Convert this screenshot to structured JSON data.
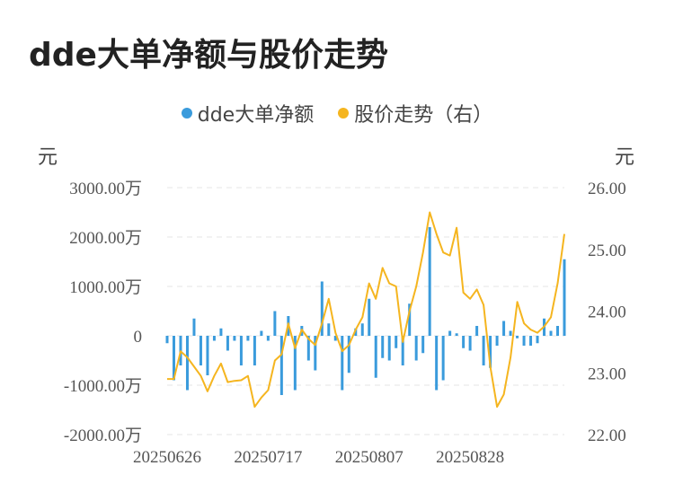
{
  "title": "dde大单净额与股价走势",
  "legend": [
    {
      "name": "dde大单净额",
      "color": "#3a9bdc"
    },
    {
      "name": "股价走势（右）",
      "color": "#f5b51f"
    }
  ],
  "chart_data": {
    "type": "bar+line",
    "title": "dde大单净额与股价走势",
    "left_unit": "元",
    "right_unit": "元",
    "y_left": {
      "min": -2000,
      "max": 3000,
      "ticks": [
        3000,
        2000,
        1000,
        0,
        -1000,
        -2000
      ],
      "tick_labels": [
        "3000.00万",
        "2000.00万",
        "1000.00万",
        "0",
        "-1000.00万",
        "-2000.00万"
      ]
    },
    "y_right": {
      "min": 22.0,
      "max": 26.0,
      "ticks": [
        26.0,
        25.0,
        24.0,
        23.0,
        22.0
      ],
      "tick_labels": [
        "26.00",
        "25.00",
        "24.00",
        "23.00",
        "22.00"
      ]
    },
    "x_tick_labels": [
      {
        "index": 0,
        "label": "20250626"
      },
      {
        "index": 15,
        "label": "20250717"
      },
      {
        "index": 30,
        "label": "20250807"
      },
      {
        "index": 45,
        "label": "20250828"
      }
    ],
    "grid": true,
    "legend_position": "top-center",
    "series": [
      {
        "name": "dde大单净额",
        "type": "bar",
        "color": "#3a9bdc",
        "values": [
          -150,
          -900,
          -600,
          -1100,
          350,
          -600,
          -800,
          -100,
          150,
          -300,
          -100,
          -600,
          -100,
          -600,
          100,
          -100,
          500,
          -1200,
          400,
          -1100,
          200,
          -500,
          -700,
          1100,
          250,
          -100,
          -1100,
          -750,
          150,
          250,
          750,
          -850,
          -450,
          -500,
          -250,
          -600,
          650,
          -500,
          -350,
          2200,
          -1100,
          -900,
          100,
          50,
          -250,
          -300,
          200,
          -600,
          -650,
          -200,
          300,
          100,
          -50,
          -200,
          -200,
          -150,
          350,
          100,
          200,
          1550
        ]
      },
      {
        "name": "股价走势（右）",
        "type": "line",
        "color": "#f5b51f",
        "values": [
          22.9,
          22.9,
          23.35,
          23.25,
          23.1,
          22.95,
          22.7,
          22.95,
          23.15,
          22.85,
          22.87,
          22.88,
          22.95,
          22.45,
          22.6,
          22.72,
          23.2,
          23.3,
          23.8,
          23.4,
          23.7,
          23.55,
          23.45,
          23.8,
          24.2,
          23.65,
          23.35,
          23.45,
          23.7,
          23.9,
          24.45,
          24.2,
          24.7,
          24.45,
          24.4,
          23.5,
          24.0,
          24.4,
          24.95,
          25.6,
          25.25,
          24.95,
          24.9,
          25.35,
          24.3,
          24.2,
          24.35,
          24.1,
          23.1,
          22.45,
          22.65,
          23.25,
          24.15,
          23.8,
          23.7,
          23.65,
          23.75,
          23.9,
          24.45,
          25.25
        ]
      }
    ]
  }
}
